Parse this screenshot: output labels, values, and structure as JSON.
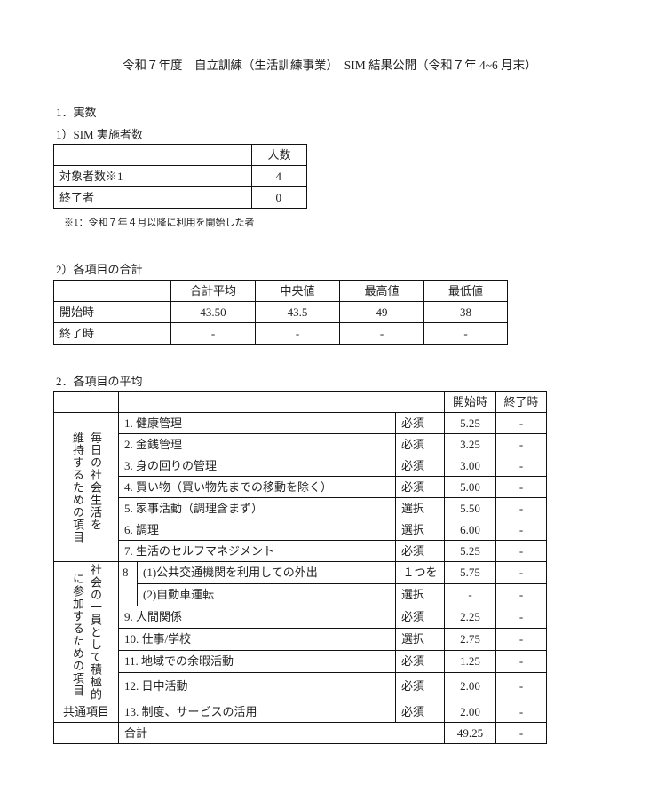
{
  "title": "令和７年度　自立訓練（生活訓練事業）　SIM 結果公開（令和７年 4~6 月末）",
  "section1": {
    "heading": "1．実数",
    "sub1": {
      "heading": "1）SIM 実施者数",
      "header": "人数",
      "rows": [
        {
          "label": "対象者数※1",
          "value": "4"
        },
        {
          "label": "終了者",
          "value": "0"
        }
      ],
      "note": "※1：令和７年４月以降に利用を開始した者"
    },
    "sub2": {
      "heading": "2）各項目の合計",
      "headers": [
        "合計平均",
        "中央値",
        "最高値",
        "最低値"
      ],
      "rows": [
        {
          "label": "開始時",
          "values": [
            "43.50",
            "43.5",
            "49",
            "38"
          ]
        },
        {
          "label": "終了時",
          "values": [
            "-",
            "-",
            "-",
            "-"
          ]
        }
      ]
    }
  },
  "section2": {
    "heading": "2．各項目の平均",
    "headers": {
      "start": "開始時",
      "end": "終了時"
    },
    "category1": [
      "毎日の社会生活を",
      "維持するための項目"
    ],
    "category2": [
      "社会の一員として積極的",
      "に参加するための項目"
    ],
    "category3": "共通項目",
    "items": [
      {
        "label": "1.  健康管理",
        "type": "必須",
        "start": "5.25",
        "end": "-"
      },
      {
        "label": "2.  金銭管理",
        "type": "必須",
        "start": "3.25",
        "end": "-"
      },
      {
        "label": "3.  身の回りの管理",
        "type": "必須",
        "start": "3.00",
        "end": "-"
      },
      {
        "label": "4.  買い物（買い物先までの移動を除く）",
        "type": "必須",
        "start": "5.00",
        "end": "-"
      },
      {
        "label": "5.  家事活動（調理含まず）",
        "type": "選択",
        "start": "5.50",
        "end": "-"
      },
      {
        "label": "6.  調理",
        "type": "選択",
        "start": "6.00",
        "end": "-"
      },
      {
        "label": "7.  生活のセルフマネジメント",
        "type": "必須",
        "start": "5.25",
        "end": "-"
      }
    ],
    "item8": {
      "number": "8",
      "type_line1": "１つを",
      "type_line2": "選択",
      "subs": [
        {
          "label": "(1)公共交通機関を利用しての外出",
          "start": "5.75",
          "end": "-"
        },
        {
          "label": "(2)自動車運転",
          "start": "-",
          "end": "-"
        }
      ]
    },
    "items2": [
      {
        "label": "9.  人間関係",
        "type": "必須",
        "start": "2.25",
        "end": "-"
      },
      {
        "label": "10.  仕事/学校",
        "type": "選択",
        "start": "2.75",
        "end": "-"
      },
      {
        "label": "11.  地域での余暇活動",
        "type": "必須",
        "start": "1.25",
        "end": "-"
      },
      {
        "label": "12.  日中活動",
        "type": "必須",
        "start": "2.00",
        "end": "-"
      }
    ],
    "item13": {
      "label": "13.  制度、サービスの活用",
      "type": "必須",
      "start": "2.00",
      "end": "-"
    },
    "total": {
      "label": "合計",
      "start": "49.25",
      "end": "-"
    }
  }
}
